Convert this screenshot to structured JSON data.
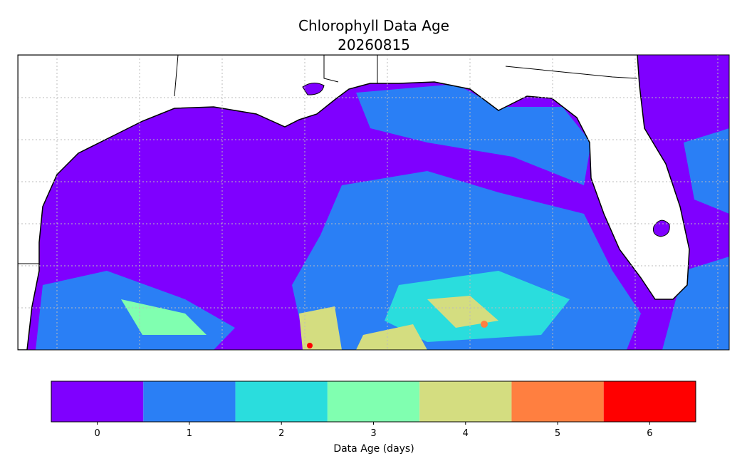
{
  "title": "Chlorophyll Data Age",
  "subtitle": "20260815",
  "colorbar": {
    "label": "Data Age (days)",
    "ticks": [
      0,
      1,
      2,
      3,
      4,
      5,
      6
    ],
    "colors": [
      "#7f00ff",
      "#2a7ff5",
      "#2adddd",
      "#80ffb0",
      "#d4dd80",
      "#ff7f40",
      "#ff0000"
    ]
  }
}
